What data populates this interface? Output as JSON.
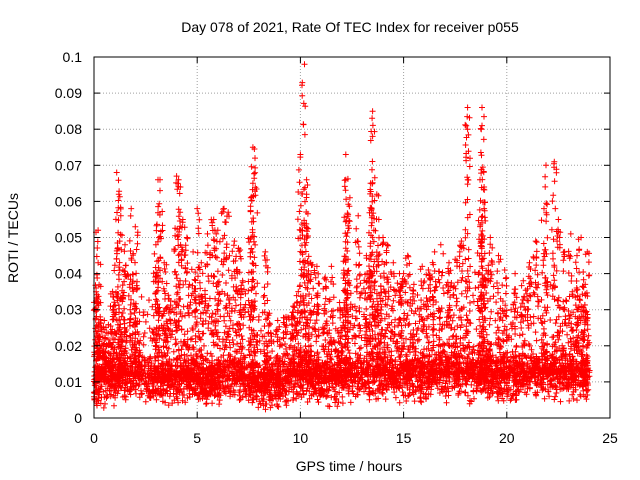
{
  "chart_data": {
    "type": "scatter",
    "title": "Day 078 of 2021, Rate Of TEC Index for receiver p055",
    "xlabel": "GPS time / hours",
    "ylabel": "ROTI / TECUs",
    "xlim": [
      0,
      25
    ],
    "ylim": [
      0,
      0.1
    ],
    "xticks": [
      0,
      5,
      10,
      15,
      20,
      25
    ],
    "yticks": [
      0,
      0.01,
      0.02,
      0.03,
      0.04,
      0.05,
      0.06,
      0.07,
      0.08,
      0.09,
      0.1
    ],
    "xtick_labels": [
      "0",
      "5",
      "10",
      "15",
      "20",
      "25"
    ],
    "ytick_labels": [
      "0",
      "0.01",
      "0.02",
      "0.03",
      "0.04",
      "0.05",
      "0.06",
      "0.07",
      "0.08",
      "0.09",
      "0.1"
    ],
    "grid": true,
    "marker": "plus",
    "color": "#ff0000",
    "series": [
      {
        "points": [
          [
            0.1,
            0.036
          ],
          [
            0.2,
            0.043
          ],
          [
            0.3,
            0.028
          ],
          [
            0.2,
            0.052
          ],
          [
            0.5,
            0.027
          ],
          [
            1.1,
            0.068
          ],
          [
            1.2,
            0.062
          ],
          [
            1.3,
            0.056
          ],
          [
            1.5,
            0.048
          ],
          [
            1.8,
            0.058
          ],
          [
            2.0,
            0.053
          ],
          [
            2.1,
            0.036
          ],
          [
            1.4,
            0.041
          ],
          [
            0.8,
            0.031
          ],
          [
            0.9,
            0.035
          ],
          [
            3.1,
            0.066
          ],
          [
            3.2,
            0.063
          ],
          [
            3.0,
            0.048
          ],
          [
            3.4,
            0.043
          ],
          [
            3.6,
            0.034
          ],
          [
            4.0,
            0.067
          ],
          [
            4.1,
            0.066
          ],
          [
            4.3,
            0.055
          ],
          [
            4.5,
            0.05
          ],
          [
            4.8,
            0.046
          ],
          [
            5.0,
            0.058
          ],
          [
            5.2,
            0.043
          ],
          [
            5.5,
            0.051
          ],
          [
            5.8,
            0.055
          ],
          [
            6.0,
            0.052
          ],
          [
            6.3,
            0.058
          ],
          [
            6.5,
            0.057
          ],
          [
            6.8,
            0.049
          ],
          [
            7.0,
            0.047
          ],
          [
            7.2,
            0.038
          ],
          [
            7.7,
            0.075
          ],
          [
            7.8,
            0.072
          ],
          [
            7.7,
            0.065
          ],
          [
            7.6,
            0.061
          ],
          [
            8.3,
            0.046
          ],
          [
            8.5,
            0.029
          ],
          [
            8.9,
            0.027
          ],
          [
            9.3,
            0.028
          ],
          [
            9.7,
            0.031
          ],
          [
            9.9,
            0.035
          ],
          [
            10.0,
            0.073
          ],
          [
            10.2,
            0.098
          ],
          [
            10.3,
            0.066
          ],
          [
            10.3,
            0.062
          ],
          [
            10.1,
            0.052
          ],
          [
            10.5,
            0.043
          ],
          [
            10.8,
            0.042
          ],
          [
            11.2,
            0.039
          ],
          [
            11.5,
            0.042
          ],
          [
            11.9,
            0.032
          ],
          [
            12.2,
            0.073
          ],
          [
            12.2,
            0.066
          ],
          [
            12.4,
            0.061
          ],
          [
            12.8,
            0.056
          ],
          [
            12.2,
            0.047
          ],
          [
            13.2,
            0.045
          ],
          [
            13.4,
            0.065
          ],
          [
            13.5,
            0.085
          ],
          [
            13.5,
            0.078
          ],
          [
            13.7,
            0.062
          ],
          [
            13.8,
            0.055
          ],
          [
            14.0,
            0.05
          ],
          [
            14.2,
            0.048
          ],
          [
            14.5,
            0.043
          ],
          [
            14.8,
            0.04
          ],
          [
            15.0,
            0.04
          ],
          [
            15.2,
            0.045
          ],
          [
            15.5,
            0.037
          ],
          [
            15.9,
            0.042
          ],
          [
            16.2,
            0.041
          ],
          [
            16.5,
            0.046
          ],
          [
            16.8,
            0.048
          ],
          [
            17.2,
            0.043
          ],
          [
            17.5,
            0.044
          ],
          [
            17.8,
            0.049
          ],
          [
            18.1,
            0.086
          ],
          [
            18.1,
            0.08
          ],
          [
            18.8,
            0.086
          ],
          [
            18.8,
            0.081
          ],
          [
            18.7,
            0.066
          ],
          [
            18.9,
            0.064
          ],
          [
            18.9,
            0.058
          ],
          [
            19.2,
            0.05
          ],
          [
            19.6,
            0.045
          ],
          [
            19.9,
            0.041
          ],
          [
            20.4,
            0.04
          ],
          [
            20.8,
            0.038
          ],
          [
            21.1,
            0.043
          ],
          [
            21.4,
            0.049
          ],
          [
            21.8,
            0.058
          ],
          [
            21.9,
            0.07
          ],
          [
            22.3,
            0.071
          ],
          [
            22.5,
            0.055
          ],
          [
            22.8,
            0.046
          ],
          [
            23.1,
            0.051
          ],
          [
            23.4,
            0.045
          ],
          [
            23.6,
            0.05
          ],
          [
            23.9,
            0.046
          ],
          [
            23.8,
            0.037
          ]
        ]
      }
    ],
    "dense_band": {
      "description_levels_hours_to_baseline": [
        [
          0,
          0.009
        ],
        [
          1,
          0.011
        ],
        [
          2,
          0.012
        ],
        [
          3,
          0.01
        ],
        [
          4,
          0.011
        ],
        [
          5,
          0.01
        ],
        [
          6,
          0.011
        ],
        [
          7,
          0.012
        ],
        [
          8,
          0.009
        ],
        [
          9,
          0.009
        ],
        [
          10,
          0.012
        ],
        [
          11,
          0.011
        ],
        [
          12,
          0.011
        ],
        [
          13,
          0.012
        ],
        [
          14,
          0.012
        ],
        [
          15,
          0.011
        ],
        [
          16,
          0.012
        ],
        [
          17,
          0.012
        ],
        [
          18,
          0.012
        ],
        [
          19,
          0.012
        ],
        [
          20,
          0.011
        ],
        [
          21,
          0.012
        ],
        [
          22,
          0.012
        ],
        [
          23,
          0.012
        ],
        [
          24,
          0.011
        ]
      ],
      "envelope_upper": [
        [
          0,
          0.03
        ],
        [
          0.5,
          0.025
        ],
        [
          1,
          0.035
        ],
        [
          1.5,
          0.04
        ],
        [
          2,
          0.04
        ],
        [
          2.5,
          0.03
        ],
        [
          3,
          0.04
        ],
        [
          3.5,
          0.032
        ],
        [
          4,
          0.04
        ],
        [
          4.5,
          0.036
        ],
        [
          5,
          0.035
        ],
        [
          5.5,
          0.033
        ],
        [
          6,
          0.038
        ],
        [
          6.5,
          0.04
        ],
        [
          7,
          0.042
        ],
        [
          7.5,
          0.036
        ],
        [
          8,
          0.028
        ],
        [
          8.5,
          0.024
        ],
        [
          9,
          0.023
        ],
        [
          9.5,
          0.028
        ],
        [
          10,
          0.036
        ],
        [
          10.5,
          0.038
        ],
        [
          11,
          0.034
        ],
        [
          11.5,
          0.033
        ],
        [
          12,
          0.038
        ],
        [
          12.5,
          0.035
        ],
        [
          13,
          0.038
        ],
        [
          13.5,
          0.042
        ],
        [
          14,
          0.043
        ],
        [
          14.5,
          0.038
        ],
        [
          15,
          0.035
        ],
        [
          15.5,
          0.034
        ],
        [
          16,
          0.038
        ],
        [
          16.5,
          0.04
        ],
        [
          17,
          0.037
        ],
        [
          17.5,
          0.039
        ],
        [
          18,
          0.04
        ],
        [
          18.5,
          0.045
        ],
        [
          19,
          0.04
        ],
        [
          19.5,
          0.036
        ],
        [
          20,
          0.034
        ],
        [
          20.5,
          0.03
        ],
        [
          21,
          0.036
        ],
        [
          21.5,
          0.042
        ],
        [
          22,
          0.044
        ],
        [
          22.5,
          0.038
        ],
        [
          23,
          0.037
        ],
        [
          23.5,
          0.035
        ],
        [
          23.9,
          0.03
        ]
      ],
      "x_end": 23.95
    }
  }
}
